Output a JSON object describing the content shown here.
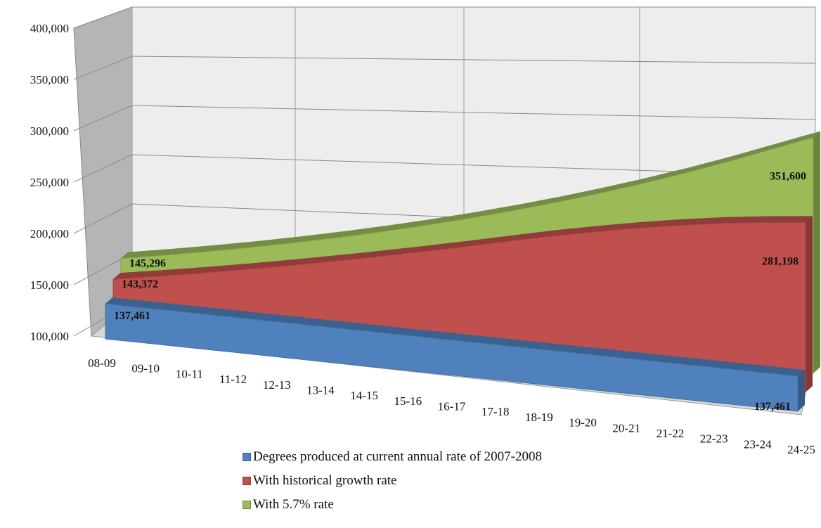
{
  "chart_data": {
    "type": "area",
    "three_d": true,
    "categories": [
      "08-09",
      "09-10",
      "10-11",
      "11-12",
      "12-13",
      "13-14",
      "14-15",
      "15-16",
      "16-17",
      "17-18",
      "18-19",
      "19-20",
      "20-21",
      "21-22",
      "22-23",
      "23-24",
      "24-25"
    ],
    "y_ticks": [
      "400,000",
      "350,000",
      "300,000",
      "250,000",
      "200,000",
      "150,000",
      "100,000"
    ],
    "ylim": [
      100000,
      400000
    ],
    "grid": true,
    "legend_position": "bottom",
    "series": [
      {
        "name": "Degrees produced at current annual rate of 2007-2008",
        "color": "#4f81bd",
        "values": [
          137461,
          137461,
          137461,
          137461,
          137461,
          137461,
          137461,
          137461,
          137461,
          137461,
          137461,
          137461,
          137461,
          137461,
          137461,
          137461,
          137461
        ],
        "labels": {
          "first": "137,461",
          "last": "137,461"
        }
      },
      {
        "name": "With historical growth rate",
        "color": "#c0504d",
        "values": [
          143372,
          151200,
          159400,
          168000,
          177000,
          186300,
          195900,
          205800,
          216000,
          226500,
          237000,
          246500,
          255400,
          263500,
          270500,
          276300,
          281198
        ],
        "labels": {
          "first": "143,372",
          "last": "281,198"
        }
      },
      {
        "name": "With 5.7% rate",
        "color": "#9bbb59",
        "values": [
          145296,
          153578,
          162332,
          171585,
          181365,
          191703,
          202630,
          214179,
          226387,
          239291,
          252931,
          267348,
          282586,
          298694,
          315719,
          333715,
          351600
        ],
        "labels": {
          "first": "145,296",
          "last": "351,600"
        }
      }
    ]
  }
}
